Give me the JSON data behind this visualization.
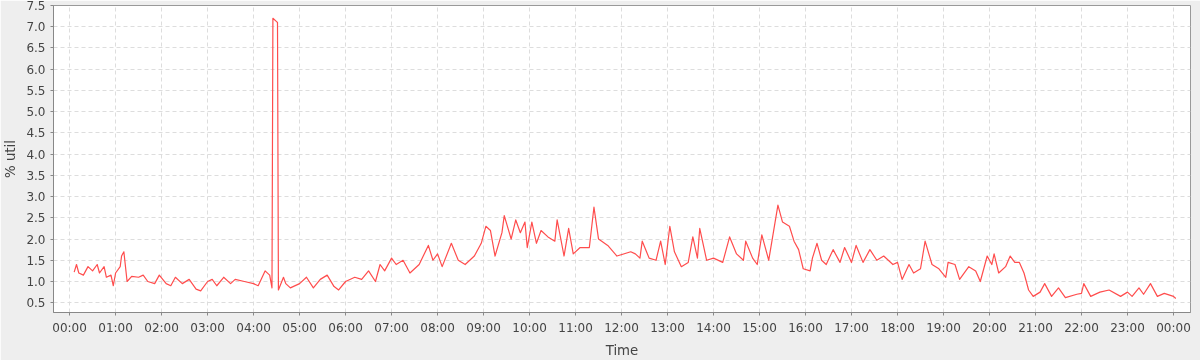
{
  "chart_data": {
    "type": "line",
    "xlabel": "Time",
    "ylabel": "% util",
    "xlim": [
      -0.35,
      24.37
    ],
    "ylim": [
      0.27,
      7.5
    ],
    "xticks": [
      {
        "value": 0,
        "label": "00:00"
      },
      {
        "value": 1,
        "label": "01:00"
      },
      {
        "value": 2,
        "label": "02:00"
      },
      {
        "value": 3,
        "label": "03:00"
      },
      {
        "value": 4,
        "label": "04:00"
      },
      {
        "value": 5,
        "label": "05:00"
      },
      {
        "value": 6,
        "label": "06:00"
      },
      {
        "value": 7,
        "label": "07:00"
      },
      {
        "value": 8,
        "label": "08:00"
      },
      {
        "value": 9,
        "label": "09:00"
      },
      {
        "value": 10,
        "label": "10:00"
      },
      {
        "value": 11,
        "label": "11:00"
      },
      {
        "value": 12,
        "label": "12:00"
      },
      {
        "value": 13,
        "label": "13:00"
      },
      {
        "value": 14,
        "label": "14:00"
      },
      {
        "value": 15,
        "label": "15:00"
      },
      {
        "value": 16,
        "label": "16:00"
      },
      {
        "value": 17,
        "label": "17:00"
      },
      {
        "value": 18,
        "label": "18:00"
      },
      {
        "value": 19,
        "label": "19:00"
      },
      {
        "value": 20,
        "label": "20:00"
      },
      {
        "value": 21,
        "label": "21:00"
      },
      {
        "value": 22,
        "label": "22:00"
      },
      {
        "value": 23,
        "label": "23:00"
      },
      {
        "value": 24,
        "label": "00:00"
      }
    ],
    "yticks": [
      {
        "value": 0.5,
        "label": "0.5"
      },
      {
        "value": 1,
        "label": "1.0"
      },
      {
        "value": 1.5,
        "label": "1.5"
      },
      {
        "value": 2,
        "label": "2.0"
      },
      {
        "value": 2.5,
        "label": "2.5"
      },
      {
        "value": 3,
        "label": "3.0"
      },
      {
        "value": 3.5,
        "label": "3.5"
      },
      {
        "value": 4,
        "label": "4.0"
      },
      {
        "value": 4.5,
        "label": "4.5"
      },
      {
        "value": 5,
        "label": "5.0"
      },
      {
        "value": 5.5,
        "label": "5.5"
      },
      {
        "value": 6,
        "label": "6.0"
      },
      {
        "value": 6.5,
        "label": "6.5"
      },
      {
        "value": 7,
        "label": "7.0"
      },
      {
        "value": 7.5,
        "label": "7.5"
      }
    ],
    "grid": true,
    "line_style": "solid",
    "series": [
      {
        "color": "#ff4d4d",
        "x": [
          0.1,
          0.15,
          0.2,
          0.3,
          0.4,
          0.5,
          0.6,
          0.65,
          0.75,
          0.8,
          0.9,
          0.95,
          1.0,
          1.1,
          1.13,
          1.18,
          1.25,
          1.35,
          1.5,
          1.6,
          1.7,
          1.85,
          1.95,
          2.1,
          2.2,
          2.3,
          2.45,
          2.6,
          2.75,
          2.85,
          3.0,
          3.1,
          3.2,
          3.35,
          3.5,
          3.6,
          3.8,
          4.0,
          4.1,
          4.25,
          4.35,
          4.4,
          4.42,
          4.5,
          4.52,
          4.54,
          4.65,
          4.7,
          4.8,
          5.0,
          5.15,
          5.3,
          5.45,
          5.6,
          5.75,
          5.85,
          6.0,
          6.2,
          6.35,
          6.5,
          6.65,
          6.75,
          6.85,
          7.0,
          7.1,
          7.25,
          7.4,
          7.6,
          7.8,
          7.9,
          8.0,
          8.1,
          8.3,
          8.45,
          8.6,
          8.8,
          8.95,
          9.05,
          9.15,
          9.25,
          9.4,
          9.45,
          9.6,
          9.7,
          9.8,
          9.9,
          9.95,
          10.05,
          10.15,
          10.25,
          10.4,
          10.55,
          10.6,
          10.75,
          10.85,
          10.95,
          11.1,
          11.3,
          11.4,
          11.5,
          11.7,
          11.9,
          12.2,
          12.3,
          12.4,
          12.45,
          12.6,
          12.75,
          12.85,
          12.95,
          13.05,
          13.15,
          13.3,
          13.45,
          13.55,
          13.65,
          13.7,
          13.85,
          14.0,
          14.2,
          14.35,
          14.5,
          14.65,
          14.7,
          14.85,
          14.95,
          15.05,
          15.2,
          15.4,
          15.5,
          15.65,
          15.75,
          15.85,
          15.95,
          16.1,
          16.15,
          16.25,
          16.35,
          16.45,
          16.6,
          16.75,
          16.85,
          17.0,
          17.1,
          17.25,
          17.4,
          17.55,
          17.7,
          17.9,
          18.0,
          18.1,
          18.25,
          18.35,
          18.5,
          18.6,
          18.75,
          18.9,
          19.05,
          19.1,
          19.25,
          19.35,
          19.55,
          19.7,
          19.8,
          19.95,
          20.05,
          20.1,
          20.2,
          20.35,
          20.45,
          20.55,
          20.65,
          20.75,
          20.85,
          20.95,
          21.1,
          21.2,
          21.35,
          21.5,
          21.65,
          21.9,
          22.0,
          22.05,
          22.2,
          22.4,
          22.6,
          22.85,
          23.0,
          23.1,
          23.25,
          23.35,
          23.5,
          23.65,
          23.8,
          24.0,
          24.05
        ],
        "values": [
          1.22,
          1.4,
          1.2,
          1.15,
          1.35,
          1.25,
          1.4,
          1.2,
          1.35,
          1.1,
          1.15,
          0.9,
          1.2,
          1.35,
          1.6,
          1.7,
          1.0,
          1.12,
          1.1,
          1.15,
          1.0,
          0.95,
          1.15,
          0.95,
          0.9,
          1.1,
          0.95,
          1.05,
          0.82,
          0.78,
          1.0,
          1.05,
          0.9,
          1.1,
          0.95,
          1.05,
          1.0,
          0.95,
          0.9,
          1.25,
          1.15,
          0.85,
          7.2,
          7.12,
          7.1,
          0.8,
          1.1,
          0.95,
          0.85,
          0.95,
          1.1,
          0.85,
          1.05,
          1.15,
          0.88,
          0.8,
          1.0,
          1.1,
          1.05,
          1.25,
          1.0,
          1.4,
          1.25,
          1.55,
          1.4,
          1.5,
          1.2,
          1.4,
          1.85,
          1.5,
          1.65,
          1.35,
          1.9,
          1.5,
          1.4,
          1.6,
          1.9,
          2.3,
          2.2,
          1.6,
          2.15,
          2.55,
          2.0,
          2.45,
          2.15,
          2.4,
          1.8,
          2.4,
          1.9,
          2.2,
          2.05,
          1.95,
          2.45,
          1.6,
          2.25,
          1.65,
          1.8,
          1.8,
          2.75,
          2.0,
          1.85,
          1.6,
          1.7,
          1.65,
          1.55,
          1.95,
          1.55,
          1.5,
          1.95,
          1.4,
          2.3,
          1.7,
          1.35,
          1.45,
          2.05,
          1.55,
          2.25,
          1.5,
          1.55,
          1.45,
          2.05,
          1.65,
          1.5,
          1.95,
          1.55,
          1.4,
          2.1,
          1.5,
          2.8,
          2.4,
          2.3,
          1.95,
          1.75,
          1.3,
          1.25,
          1.55,
          1.9,
          1.5,
          1.4,
          1.75,
          1.45,
          1.8,
          1.45,
          1.85,
          1.45,
          1.75,
          1.5,
          1.6,
          1.4,
          1.45,
          1.05,
          1.4,
          1.2,
          1.3,
          1.95,
          1.4,
          1.3,
          1.1,
          1.45,
          1.4,
          1.05,
          1.35,
          1.25,
          1.0,
          1.6,
          1.4,
          1.65,
          1.2,
          1.35,
          1.6,
          1.45,
          1.45,
          1.2,
          0.8,
          0.65,
          0.75,
          0.95,
          0.65,
          0.85,
          0.62,
          0.7,
          0.72,
          0.95,
          0.65,
          0.75,
          0.8,
          0.65,
          0.75,
          0.65,
          0.85,
          0.7,
          0.95,
          0.65,
          0.72,
          0.65,
          0.6
        ]
      }
    ]
  }
}
